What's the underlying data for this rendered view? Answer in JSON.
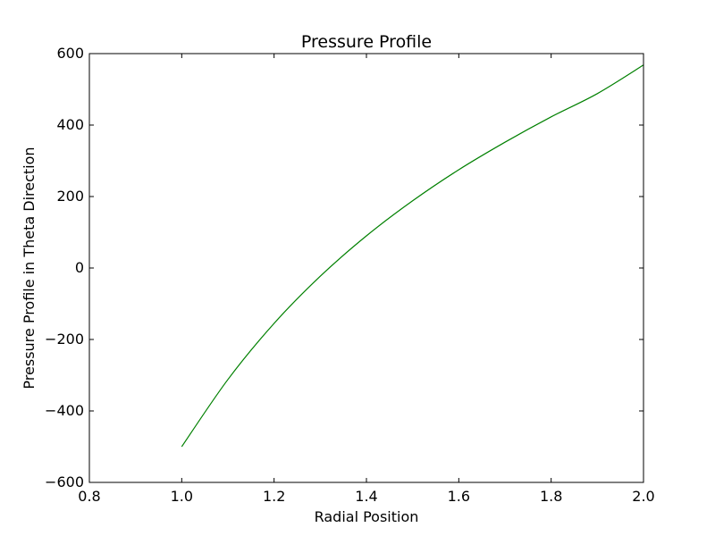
{
  "chart_data": {
    "type": "line",
    "title": "Pressure Profile",
    "xlabel": "Radial Position",
    "ylabel": "Pressure Profile in Theta Direction",
    "xlim": [
      0.8,
      2.0
    ],
    "ylim": [
      -600,
      600
    ],
    "xticks": [
      0.8,
      1.0,
      1.2,
      1.4,
      1.6,
      1.8,
      2.0
    ],
    "xtick_labels": [
      "0.8",
      "1.0",
      "1.2",
      "1.4",
      "1.6",
      "1.8",
      "2.0"
    ],
    "yticks": [
      -600,
      -400,
      -200,
      0,
      200,
      400,
      600
    ],
    "ytick_labels": [
      "−600",
      "−400",
      "−200",
      "0",
      "200",
      "400",
      "600"
    ],
    "grid": false,
    "series": [
      {
        "color": "#008000",
        "x": [
          1.0,
          1.1,
          1.2,
          1.3,
          1.4,
          1.5,
          1.6,
          1.7,
          1.8,
          1.9,
          2.0
        ],
        "y": [
          -500,
          -312,
          -155,
          -23,
          90,
          188,
          275,
          352,
          423,
          488,
          568
        ]
      }
    ]
  }
}
